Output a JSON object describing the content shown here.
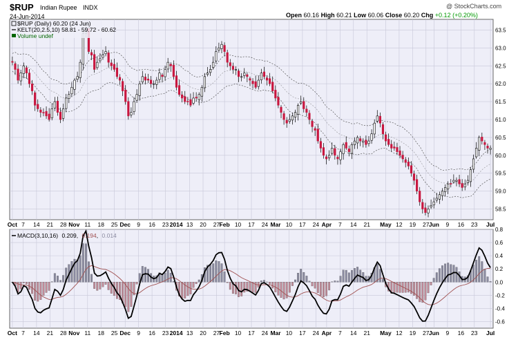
{
  "header": {
    "ticker": "$RUP",
    "name": "Indian Rupee",
    "exchange": "INDX",
    "date": "24-Jun-2014",
    "watermark": "@ StockCharts.com",
    "open_label": "Open",
    "open": "60.16",
    "high_label": "High",
    "high": "60.21",
    "low_label": "Low",
    "low": "60.06",
    "close_label": "Close",
    "close": "60.20",
    "chg_label": "Chg",
    "chg": "+0.12 (+0.20%)"
  },
  "legend": {
    "price": "$RUP (Daily) 60.20 (24 Jun)",
    "kelt": "KELT(20,2.5,10) 58.81 - 59.72 - 60.62",
    "volume": "Volume undef"
  },
  "macd_legend": {
    "label": "MACD(3,10,16)",
    "macd": "0.209",
    "signal": "0.194",
    "hist": "0.014"
  },
  "colors": {
    "up": "#ffffff",
    "down": "#c8173f",
    "wick": "#000000",
    "panel_bg": "#eeeef8",
    "grid": "#c8c8d8",
    "hist_pos": "#8a8aa0",
    "hist_neg": "#c08a98",
    "chg_text": "#009900",
    "volume_text": "#006600",
    "macd_line": "#000000",
    "signal_line": "#a05050"
  },
  "chart_data": [
    {
      "type": "candlestick",
      "title": "$RUP (Daily) 60.20 (24 Jun)",
      "ylim": [
        58.2,
        63.8
      ],
      "y_ticks": [
        "58.5",
        "59.0",
        "59.5",
        "60.0",
        "60.5",
        "61.0",
        "61.5",
        "62.0",
        "62.5",
        "63.0",
        "63.5"
      ],
      "x_ticks": [
        "Oct",
        "7",
        "14",
        "21",
        "28",
        "Nov",
        "11",
        "18",
        "25",
        "Dec",
        "9",
        "16",
        "23",
        "2014",
        "13",
        "20",
        "27",
        "Feb",
        "10",
        "17",
        "24",
        "Mar",
        "10",
        "17",
        "24",
        "Apr",
        "7",
        "14",
        "21",
        "May",
        "12",
        "19",
        "27",
        "Jun",
        "9",
        "16",
        "23",
        "Jul"
      ],
      "x_tick_units": [
        1,
        5,
        10,
        15,
        20,
        24,
        29,
        34,
        39,
        43,
        48,
        53,
        58,
        62,
        67,
        72,
        77,
        80,
        85,
        90,
        95,
        99,
        104,
        109,
        114,
        118,
        123,
        128,
        133,
        140,
        145,
        150,
        155,
        158,
        163,
        168,
        173,
        179
      ],
      "x_range": [
        0,
        180
      ],
      "close": [
        62.6,
        62.4,
        62.1,
        62.3,
        62.5,
        62.3,
        62.0,
        61.8,
        61.4,
        61.3,
        61.2,
        61.2,
        61.1,
        61.0,
        61.3,
        61.5,
        61.2,
        61.0,
        61.3,
        61.6,
        61.7,
        61.9,
        62.1,
        62.2,
        62.6,
        63.4,
        63.5,
        62.9,
        62.8,
        62.4,
        62.6,
        62.7,
        62.8,
        62.9,
        62.6,
        62.5,
        62.4,
        62.2,
        62.1,
        61.8,
        61.5,
        61.1,
        61.2,
        61.5,
        61.7,
        62.0,
        62.2,
        62.1,
        62.1,
        62.0,
        62.0,
        62.1,
        62.3,
        62.2,
        62.4,
        62.6,
        62.5,
        62.2,
        61.9,
        61.7,
        61.6,
        61.5,
        61.5,
        61.4,
        61.6,
        61.6,
        61.7,
        61.9,
        62.2,
        62.3,
        62.4,
        62.6,
        62.9,
        63.0,
        63.1,
        62.9,
        62.6,
        62.5,
        62.4,
        62.4,
        62.2,
        62.2,
        62.3,
        62.2,
        62.1,
        62.0,
        61.9,
        62.1,
        62.3,
        62.2,
        62.1,
        62.0,
        61.8,
        61.6,
        61.4,
        61.2,
        61.0,
        60.9,
        61.0,
        61.1,
        61.2,
        61.4,
        61.5,
        61.3,
        61.2,
        61.0,
        60.8,
        60.7,
        60.4,
        60.2,
        60.0,
        59.9,
        60.0,
        60.2,
        60.0,
        59.9,
        60.1,
        60.3,
        60.2,
        60.1,
        60.3,
        60.4,
        60.5,
        60.4,
        60.4,
        60.3,
        60.4,
        60.6,
        60.9,
        61.1,
        60.9,
        60.6,
        60.4,
        60.3,
        60.2,
        60.2,
        60.1,
        60.0,
        59.9,
        59.8,
        59.7,
        59.5,
        59.3,
        59.0,
        58.7,
        58.5,
        58.4,
        58.5,
        58.6,
        58.7,
        58.8,
        58.9,
        59.0,
        59.1,
        59.2,
        59.2,
        59.3,
        59.3,
        59.2,
        59.1,
        59.2,
        59.3,
        59.6,
        59.9,
        60.2,
        60.5,
        60.4,
        60.3,
        60.2,
        60.2
      ],
      "bands": {
        "name": "KELT(20,2.5,10)"
      }
    },
    {
      "type": "line",
      "title": "MACD(3,10,16) 0.209, 0.194, 0.014",
      "ylim": [
        -0.7,
        0.8
      ],
      "y_ticks": [
        "-0.6",
        "-0.4",
        "-0.2",
        "0.0",
        "0.2",
        "0.4",
        "0.6",
        "0.8"
      ],
      "x_ticks": [
        "Oct",
        "7",
        "14",
        "21",
        "28",
        "Nov",
        "11",
        "18",
        "25",
        "Dec",
        "9",
        "16",
        "23",
        "2014",
        "13",
        "20",
        "27",
        "Feb",
        "10",
        "17",
        "24",
        "Mar",
        "10",
        "17",
        "24",
        "Apr",
        "7",
        "14",
        "21",
        "May",
        "12",
        "19",
        "27",
        "Jun",
        "9",
        "16",
        "23",
        "Jul"
      ],
      "series": [
        {
          "name": "MACD(3,10,16)"
        },
        {
          "name": "signal"
        },
        {
          "name": "histogram"
        }
      ]
    }
  ]
}
